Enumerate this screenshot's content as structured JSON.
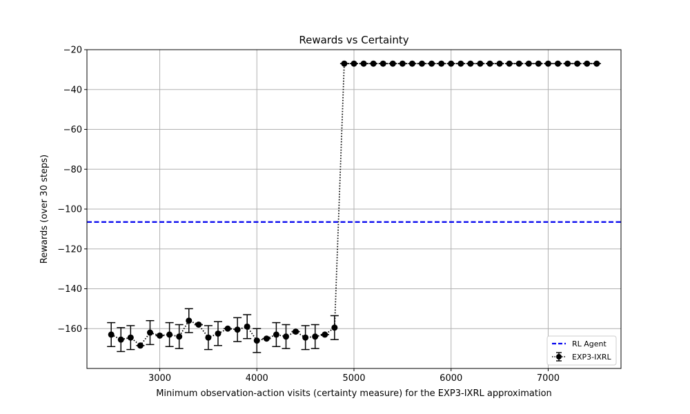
{
  "chart_data": {
    "type": "line",
    "title": "Rewards vs Certainty",
    "xlabel": "Minimum observation-action visits (certainty measure) for the EXP3-IXRL approximation",
    "ylabel": "Rewards (over 30 steps)",
    "xlim": [
      2250,
      7750
    ],
    "ylim": [
      -180,
      -20
    ],
    "xticks": [
      3000,
      4000,
      5000,
      6000,
      7000
    ],
    "yticks": [
      -20,
      -40,
      -60,
      -80,
      -100,
      -120,
      -140,
      -160
    ],
    "grid": true,
    "legend_position": "lower-right",
    "series": [
      {
        "name": "EXP3-IXRL",
        "style": "dotted-with-errorbars",
        "color": "#000000",
        "x": [
          2500,
          2600,
          2700,
          2800,
          2900,
          3000,
          3100,
          3200,
          3300,
          3400,
          3500,
          3600,
          3700,
          3800,
          3900,
          4000,
          4100,
          4200,
          4300,
          4400,
          4500,
          4600,
          4700,
          4800,
          4900,
          5000,
          5100,
          5200,
          5300,
          5400,
          5500,
          5600,
          5700,
          5800,
          5900,
          6000,
          6100,
          6200,
          6300,
          6400,
          6500,
          6600,
          6700,
          6800,
          6900,
          7000,
          7100,
          7200,
          7300,
          7400,
          7500
        ],
        "y": [
          -163,
          -165.5,
          -164.5,
          -168.5,
          -162,
          -163.5,
          -163,
          -164,
          -156,
          -158,
          -164.5,
          -162.5,
          -160,
          -160.5,
          -159,
          -166,
          -165,
          -163,
          -164,
          -161.5,
          -164.5,
          -164,
          -163,
          -159.5,
          -27,
          -27,
          -27,
          -27,
          -27,
          -27,
          -27,
          -27,
          -27,
          -27,
          -27,
          -27,
          -27,
          -27,
          -27,
          -27,
          -27,
          -27,
          -27,
          -27,
          -27,
          -27,
          -27,
          -27,
          -27,
          -27,
          -27
        ],
        "err": [
          6,
          6,
          6,
          0,
          6,
          0,
          6,
          6,
          6,
          0,
          6,
          6,
          0,
          6,
          6,
          6,
          0,
          6,
          6,
          0,
          6,
          6,
          0,
          6,
          0,
          0,
          0,
          0,
          0,
          0,
          0,
          0,
          0,
          0,
          0,
          0,
          0,
          0,
          0,
          0,
          0,
          0,
          0,
          0,
          0,
          0,
          0,
          0,
          0,
          0,
          0
        ]
      },
      {
        "name": "RL Agent",
        "style": "dashed-horizontal",
        "color": "#0000ee",
        "y": -106.5
      }
    ]
  }
}
